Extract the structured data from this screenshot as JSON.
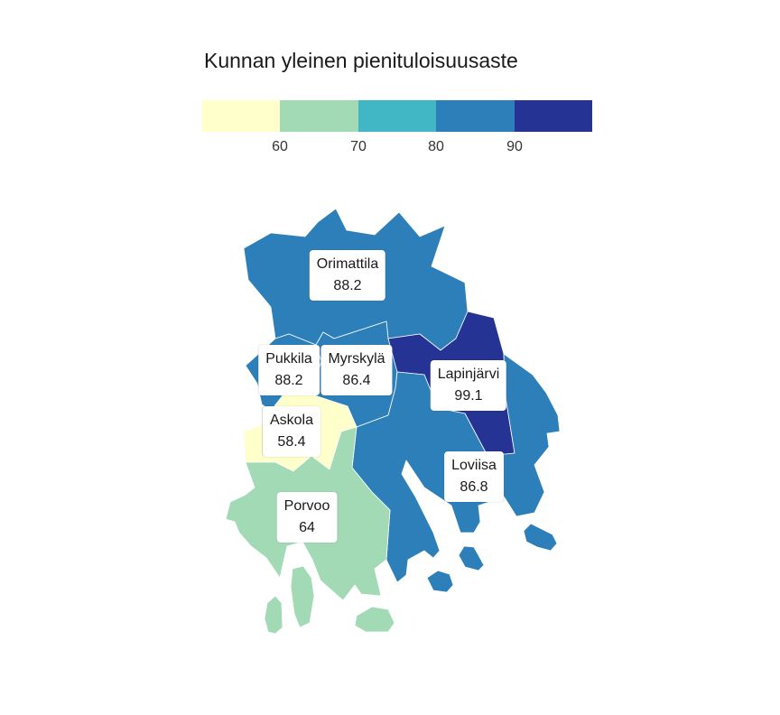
{
  "title": "Kunnan yleinen pienituloisuusaste",
  "legend": {
    "bins": [
      "#ffffcc",
      "#a1dab4",
      "#41b6c4",
      "#2c7fb8",
      "#253494"
    ],
    "ticks": [
      "60",
      "70",
      "80",
      "90"
    ]
  },
  "municipalities": [
    {
      "name": "Orimattila",
      "value": "88.2",
      "color": "#2c7fb8"
    },
    {
      "name": "Pukkila",
      "value": "88.2",
      "color": "#2c7fb8"
    },
    {
      "name": "Myrskylä",
      "value": "86.4",
      "color": "#2c7fb8"
    },
    {
      "name": "Lapinjärvi",
      "value": "99.1",
      "color": "#253494"
    },
    {
      "name": "Askola",
      "value": "58.4",
      "color": "#ffffcc"
    },
    {
      "name": "Loviisa",
      "value": "86.8",
      "color": "#2c7fb8"
    },
    {
      "name": "Porvoo",
      "value": "64",
      "color": "#a1dab4"
    }
  ]
}
